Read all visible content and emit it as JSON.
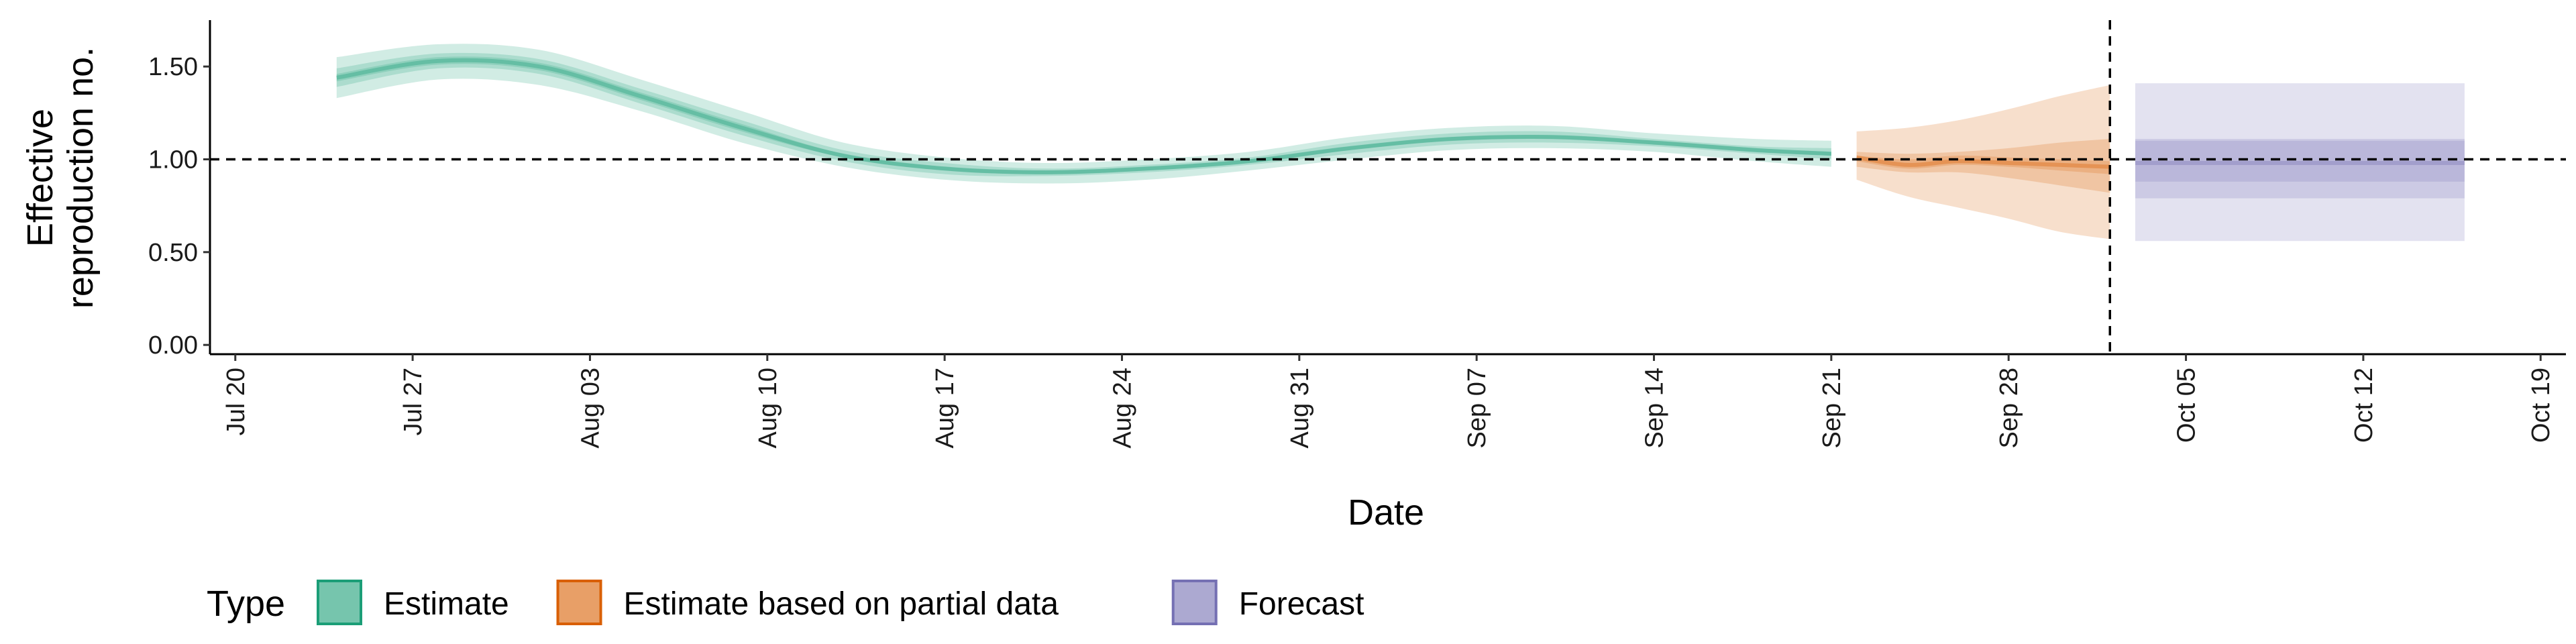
{
  "chart_data": {
    "type": "area",
    "xlabel": "Date",
    "ylabel_lines": [
      "Effective",
      "reproduction no."
    ],
    "ylim": [
      -0.05,
      1.75
    ],
    "y_ticks": [
      "0.00",
      "0.50",
      "1.00",
      "1.50"
    ],
    "y_tick_values": [
      0,
      0.5,
      1.0,
      1.5
    ],
    "xlim": [
      "2020-07-19",
      "2020-10-20"
    ],
    "x_ticks": [
      "Jul 20",
      "Jul 27",
      "Aug 03",
      "Aug 10",
      "Aug 17",
      "Aug 24",
      "Aug 31",
      "Sep 07",
      "Sep 14",
      "Sep 21",
      "Sep 28",
      "Oct 05",
      "Oct 12",
      "Oct 19"
    ],
    "x_tick_dates": [
      "2020-07-20",
      "2020-07-27",
      "2020-08-03",
      "2020-08-10",
      "2020-08-17",
      "2020-08-24",
      "2020-08-31",
      "2020-09-07",
      "2020-09-14",
      "2020-09-21",
      "2020-09-28",
      "2020-10-05",
      "2020-10-12",
      "2020-10-19"
    ],
    "reference_hline": 1.0,
    "reference_vline": "2020-10-02",
    "legend_title": "Type",
    "legend_position": "bottom",
    "colors": {
      "Estimate": "#1b9e77",
      "Estimate based on partial data": "#d95f02",
      "Forecast": "#7570b3"
    },
    "series": [
      {
        "name": "Estimate",
        "x": [
          "2020-07-24",
          "2020-07-28",
          "2020-08-01",
          "2020-08-05",
          "2020-08-09",
          "2020-08-13",
          "2020-08-17",
          "2020-08-21",
          "2020-08-25",
          "2020-08-29",
          "2020-09-02",
          "2020-09-06",
          "2020-09-10",
          "2020-09-14",
          "2020-09-18",
          "2020-09-21"
        ],
        "median": [
          1.44,
          1.53,
          1.5,
          1.34,
          1.17,
          1.02,
          0.95,
          0.93,
          0.95,
          0.99,
          1.06,
          1.11,
          1.12,
          1.09,
          1.05,
          1.03
        ],
        "lower_20": [
          1.42,
          1.51,
          1.48,
          1.32,
          1.15,
          1.01,
          0.94,
          0.92,
          0.94,
          0.98,
          1.05,
          1.1,
          1.11,
          1.08,
          1.04,
          1.02
        ],
        "upper_20": [
          1.46,
          1.55,
          1.52,
          1.36,
          1.19,
          1.03,
          0.96,
          0.94,
          0.96,
          1.0,
          1.07,
          1.12,
          1.13,
          1.1,
          1.06,
          1.04
        ],
        "lower_50": [
          1.39,
          1.49,
          1.46,
          1.3,
          1.13,
          0.99,
          0.92,
          0.91,
          0.93,
          0.97,
          1.03,
          1.08,
          1.09,
          1.07,
          1.03,
          1.0
        ],
        "upper_50": [
          1.49,
          1.57,
          1.54,
          1.38,
          1.21,
          1.05,
          0.98,
          0.95,
          0.97,
          1.01,
          1.09,
          1.14,
          1.15,
          1.11,
          1.07,
          1.06
        ],
        "lower_90": [
          1.33,
          1.43,
          1.4,
          1.26,
          1.09,
          0.96,
          0.89,
          0.87,
          0.89,
          0.94,
          1.0,
          1.05,
          1.06,
          1.04,
          0.99,
          0.96
        ],
        "upper_90": [
          1.55,
          1.62,
          1.59,
          1.43,
          1.26,
          1.09,
          1.01,
          0.98,
          1.0,
          1.04,
          1.12,
          1.17,
          1.18,
          1.14,
          1.11,
          1.1
        ]
      },
      {
        "name": "Estimate based on partial data",
        "x": [
          "2020-09-22",
          "2020-09-24",
          "2020-09-26",
          "2020-09-28",
          "2020-09-30",
          "2020-10-02"
        ],
        "median": [
          1.01,
          0.97,
          0.99,
          0.98,
          0.97,
          0.96
        ],
        "lower_20": [
          0.99,
          0.95,
          0.97,
          0.96,
          0.94,
          0.92
        ],
        "upper_20": [
          1.02,
          1.0,
          1.02,
          1.01,
          1.0,
          0.99
        ],
        "lower_50": [
          0.96,
          0.93,
          0.93,
          0.9,
          0.86,
          0.82
        ],
        "upper_50": [
          1.04,
          1.03,
          1.04,
          1.06,
          1.09,
          1.11
        ],
        "lower_90": [
          0.89,
          0.8,
          0.74,
          0.68,
          0.61,
          0.57
        ],
        "upper_90": [
          1.15,
          1.17,
          1.21,
          1.27,
          1.34,
          1.4
        ]
      },
      {
        "name": "Forecast",
        "x": [
          "2020-10-03",
          "2020-10-16"
        ],
        "median": [
          0.98,
          0.98
        ],
        "lower_50": [
          0.88,
          0.88
        ],
        "upper_50": [
          1.1,
          1.1
        ],
        "lower_75": [
          0.79,
          0.79
        ],
        "upper_75": [
          1.11,
          1.11
        ],
        "lower_90": [
          0.56,
          0.56
        ],
        "upper_90": [
          1.41,
          1.41
        ]
      }
    ]
  }
}
